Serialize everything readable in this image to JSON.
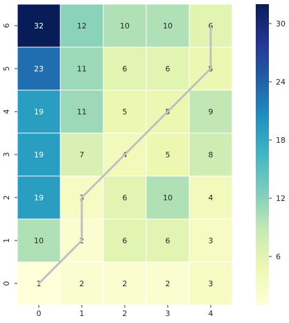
{
  "chart_data": {
    "type": "heatmap",
    "title": "",
    "xlabel": "",
    "ylabel": "",
    "x_ticks": [
      "0",
      "1",
      "2",
      "3",
      "4"
    ],
    "y_ticks": [
      "6",
      "5",
      "4",
      "3",
      "2",
      "1",
      "0"
    ],
    "values": [
      [
        32,
        12,
        10,
        10,
        6
      ],
      [
        23,
        11,
        6,
        6,
        5
      ],
      [
        19,
        11,
        5,
        5,
        9
      ],
      [
        19,
        7,
        4,
        5,
        8
      ],
      [
        19,
        3,
        6,
        10,
        4
      ],
      [
        10,
        2,
        6,
        6,
        3
      ],
      [
        1,
        2,
        2,
        2,
        3
      ]
    ],
    "path": [
      [
        0,
        0
      ],
      [
        1,
        1
      ],
      [
        1,
        2
      ],
      [
        4,
        5
      ],
      [
        4,
        6
      ]
    ],
    "colormap": "YlGnBu",
    "colorbar_ticks": [
      6,
      12,
      18,
      24,
      30
    ],
    "colorbar_range": [
      1,
      32
    ],
    "path_color": "#c0c0c0",
    "grid": false
  }
}
